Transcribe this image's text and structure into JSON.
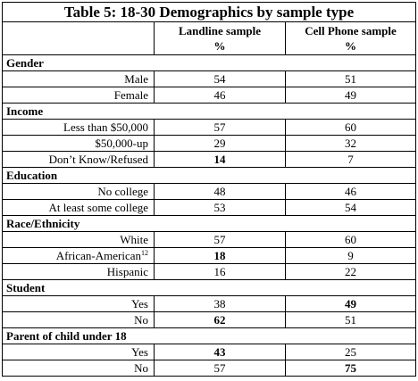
{
  "title": "Table 5: 18-30 Demographics by sample type",
  "columns": {
    "landline": "Landline sample",
    "cell": "Cell Phone sample",
    "landline_unit": "%",
    "cell_unit": "%"
  },
  "sections": [
    {
      "name": "Gender",
      "rows": [
        {
          "label": "Male",
          "landline": "54",
          "cell": "51"
        },
        {
          "label": "Female",
          "landline": "46",
          "cell": "49"
        }
      ]
    },
    {
      "name": "Income",
      "rows": [
        {
          "label": "Less than $50,000",
          "landline": "57",
          "cell": "60"
        },
        {
          "label": "$50,000-up",
          "landline": "29",
          "cell": "32"
        },
        {
          "label": "Don’t Know/Refused",
          "landline": "14",
          "cell": "7",
          "bold_landline": true
        }
      ]
    },
    {
      "name": "Education",
      "rows": [
        {
          "label": "No college",
          "landline": "48",
          "cell": "46"
        },
        {
          "label": "At least some college",
          "landline": "53",
          "cell": "54"
        }
      ]
    },
    {
      "name": "Race/Ethnicity",
      "rows": [
        {
          "label": "White",
          "landline": "57",
          "cell": "60"
        },
        {
          "label": "African-American",
          "footnote": "12",
          "landline": "18",
          "cell": "9",
          "bold_landline": true
        },
        {
          "label": "Hispanic",
          "landline": "16",
          "cell": "22"
        }
      ]
    },
    {
      "name": "Student",
      "rows": [
        {
          "label": "Yes",
          "landline": "38",
          "cell": "49",
          "bold_cell": true
        },
        {
          "label": "No",
          "landline": "62",
          "cell": "51",
          "bold_landline": true
        }
      ]
    },
    {
      "name": "Parent of child under 18",
      "rows": [
        {
          "label": "Yes",
          "landline": "43",
          "cell": "25",
          "bold_landline": true
        },
        {
          "label": "No",
          "landline": "57",
          "cell": "75",
          "bold_cell": true
        }
      ]
    }
  ]
}
